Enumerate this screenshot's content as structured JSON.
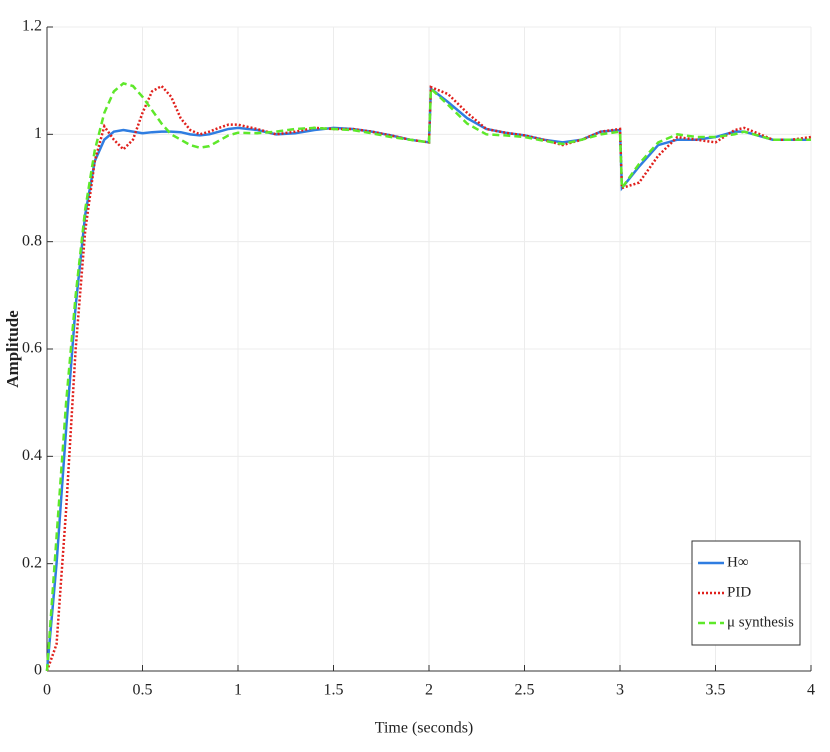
{
  "chart_data": {
    "type": "line",
    "xlabel": "Time (seconds)",
    "ylabel": "Amplitude",
    "x": [
      0,
      0.05,
      0.1,
      0.15,
      0.2,
      0.25,
      0.3,
      0.35,
      0.4,
      0.45,
      0.5,
      0.55,
      0.6,
      0.65,
      0.7,
      0.75,
      0.8,
      0.85,
      0.9,
      0.95,
      1.0,
      1.1,
      1.2,
      1.3,
      1.4,
      1.5,
      1.6,
      1.7,
      1.8,
      1.9,
      2.0,
      2.01,
      2.1,
      2.2,
      2.3,
      2.4,
      2.5,
      2.6,
      2.7,
      2.8,
      2.9,
      3.0,
      3.01,
      3.1,
      3.2,
      3.3,
      3.4,
      3.5,
      3.6,
      3.65,
      3.7,
      3.8,
      3.9,
      4.0
    ],
    "series": [
      {
        "name": "H∞",
        "color": "#2f7de1",
        "dash": "solid",
        "values": [
          0,
          0.2,
          0.45,
          0.68,
          0.85,
          0.95,
          0.99,
          1.005,
          1.008,
          1.005,
          1.002,
          1.004,
          1.005,
          1.005,
          1.004,
          1.0,
          0.998,
          1.0,
          1.005,
          1.01,
          1.012,
          1.008,
          1.0,
          1.002,
          1.008,
          1.012,
          1.01,
          1.005,
          0.998,
          0.99,
          0.985,
          1.085,
          1.06,
          1.03,
          1.01,
          1.003,
          0.998,
          0.99,
          0.985,
          0.99,
          1.005,
          1.008,
          0.9,
          0.94,
          0.98,
          0.99,
          0.99,
          0.995,
          1.005,
          1.005,
          1.0,
          0.99,
          0.99,
          0.99
        ]
      },
      {
        "name": "PID",
        "color": "#e0201c",
        "dash": "dotted",
        "values": [
          0,
          0.05,
          0.3,
          0.6,
          0.82,
          0.95,
          1.015,
          0.99,
          0.972,
          0.99,
          1.04,
          1.08,
          1.09,
          1.07,
          1.03,
          1.008,
          1.0,
          1.005,
          1.012,
          1.018,
          1.018,
          1.01,
          1.0,
          1.005,
          1.012,
          1.01,
          1.01,
          1.005,
          0.998,
          0.99,
          0.985,
          1.088,
          1.075,
          1.04,
          1.01,
          1.003,
          0.998,
          0.99,
          0.98,
          0.99,
          1.005,
          1.01,
          0.9,
          0.91,
          0.96,
          0.995,
          0.99,
          0.985,
          1.008,
          1.012,
          1.005,
          0.99,
          0.99,
          0.995
        ]
      },
      {
        "name": "μ synthesis",
        "color": "#5ee82a",
        "dash": "dashed",
        "values": [
          0,
          0.25,
          0.5,
          0.7,
          0.86,
          0.97,
          1.04,
          1.08,
          1.095,
          1.09,
          1.07,
          1.045,
          1.02,
          1.0,
          0.99,
          0.98,
          0.975,
          0.978,
          0.988,
          0.998,
          1.003,
          1.002,
          1.005,
          1.01,
          1.012,
          1.01,
          1.008,
          1.002,
          0.995,
          0.99,
          0.985,
          1.085,
          1.055,
          1.02,
          1.0,
          0.998,
          0.995,
          0.988,
          0.982,
          0.99,
          1.0,
          1.005,
          0.9,
          0.945,
          0.985,
          1.0,
          0.995,
          0.995,
          1.0,
          1.005,
          1.0,
          0.99,
          0.99,
          0.99
        ]
      }
    ],
    "xlim": [
      0,
      4
    ],
    "xticks": [
      0,
      0.5,
      1,
      1.5,
      2,
      2.5,
      3,
      3.5,
      4
    ],
    "ylim": [
      0,
      1.2
    ],
    "yticks": [
      0,
      0.2,
      0.4,
      0.6,
      0.8,
      1,
      1.2
    ],
    "grid": true,
    "legend": "lower right"
  }
}
